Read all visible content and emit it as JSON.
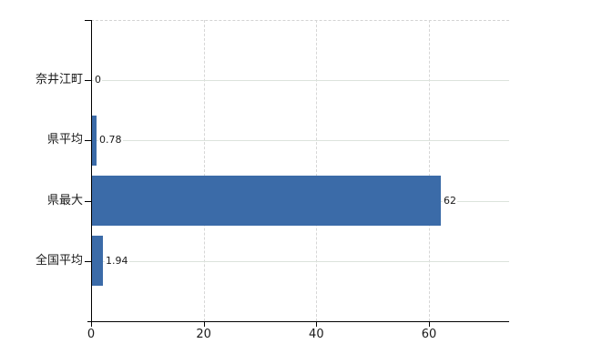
{
  "chart_data": {
    "type": "bar",
    "orientation": "horizontal",
    "title": "",
    "categories": [
      "奈井江町",
      "県平均",
      "県最大",
      "全国平均"
    ],
    "values": [
      0,
      0.78,
      62,
      1.94
    ],
    "value_labels": [
      "0",
      "0.78",
      "62",
      "1.94"
    ],
    "x_ticks": [
      0,
      20,
      40,
      60
    ],
    "x_tick_labels": [
      "0",
      "20",
      "40",
      "60"
    ],
    "xlim": [
      0,
      74.2
    ],
    "grid": true,
    "legend": false,
    "colors": {
      "bar": "#3b6ba8",
      "h_grid": "#dce3dc",
      "v_grid": "#d6d6d6",
      "top_border": "#d3d3d3",
      "axis": "#000000",
      "text": "#1a1a1a"
    }
  }
}
